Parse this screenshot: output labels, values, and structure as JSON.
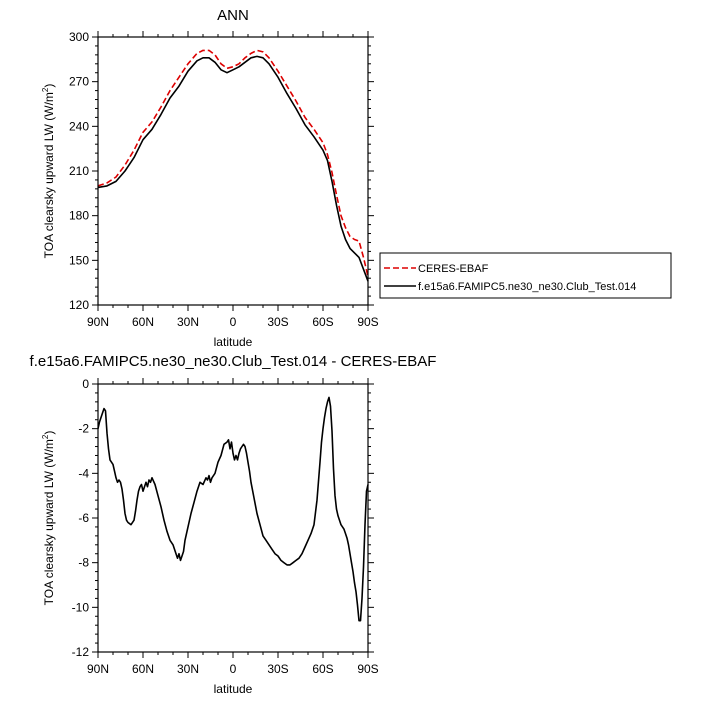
{
  "chart_data": [
    {
      "type": "line",
      "title": "ANN",
      "xlabel": "latitude",
      "ylabel": "TOA clearsky upward LW (W/m",
      "ylabel_sup": "2",
      "ylabel_end": ")",
      "xlim": [
        90,
        -90
      ],
      "ylim": [
        120,
        300
      ],
      "x_tick_values": [
        90,
        60,
        30,
        0,
        -30,
        -60,
        -90
      ],
      "x_tick_labels": [
        "90N",
        "60N",
        "30N",
        "0",
        "30S",
        "60S",
        "90S"
      ],
      "y_tick_values": [
        120,
        150,
        180,
        210,
        240,
        270,
        300
      ],
      "y_tick_labels": [
        "120",
        "150",
        "180",
        "210",
        "240",
        "270",
        "300"
      ],
      "legend_position": "right",
      "series": [
        {
          "name": "CERES-EBAF",
          "color": "#dd0000",
          "dash": "dashed",
          "x": [
            90,
            84,
            78,
            72,
            66,
            60,
            54,
            48,
            42,
            36,
            30,
            24,
            20,
            16,
            12,
            8,
            4,
            0,
            -4,
            -8,
            -12,
            -16,
            -20,
            -24,
            -30,
            -36,
            -42,
            -48,
            -54,
            -60,
            -63,
            -66,
            -69,
            -72,
            -75,
            -78,
            -81,
            -84,
            -87,
            -90
          ],
          "y": [
            200,
            202,
            206,
            214,
            224,
            236,
            243,
            253,
            264,
            273,
            282,
            289,
            291,
            291,
            288,
            282,
            279,
            280,
            282,
            286,
            289,
            291,
            290,
            286,
            277,
            267,
            257,
            246,
            238,
            229,
            221,
            209,
            194,
            180,
            172,
            166,
            164,
            163,
            152,
            139
          ]
        },
        {
          "name": "f.e15a6.FAMIPC5.ne30_ne30.Club_Test.014",
          "color": "#000000",
          "dash": "solid",
          "x": [
            90,
            84,
            78,
            72,
            66,
            60,
            54,
            48,
            42,
            36,
            30,
            24,
            20,
            16,
            12,
            8,
            4,
            0,
            -4,
            -8,
            -12,
            -16,
            -20,
            -24,
            -30,
            -36,
            -42,
            -48,
            -54,
            -60,
            -63,
            -66,
            -69,
            -72,
            -75,
            -78,
            -81,
            -84,
            -87,
            -90
          ],
          "y": [
            199,
            200,
            203,
            210,
            219,
            231,
            238,
            248,
            259,
            267,
            277,
            284,
            286,
            286,
            283,
            278,
            276,
            278,
            280,
            283,
            286,
            287,
            286,
            282,
            273,
            262,
            252,
            241,
            233,
            224,
            217,
            203,
            187,
            173,
            164,
            158,
            155,
            152,
            144,
            136
          ]
        }
      ]
    },
    {
      "type": "line",
      "title": "f.e15a6.FAMIPC5.ne30_ne30.Club_Test.014 - CERES-EBAF",
      "xlabel": "latitude",
      "ylabel": "TOA clearsky upward LW (W/m",
      "ylabel_sup": "2",
      "ylabel_end": ")",
      "xlim": [
        90,
        -90
      ],
      "ylim": [
        -12,
        0
      ],
      "x_tick_values": [
        90,
        60,
        30,
        0,
        -30,
        -60,
        -90
      ],
      "x_tick_labels": [
        "90N",
        "60N",
        "30N",
        "0",
        "30S",
        "60S",
        "90S"
      ],
      "y_tick_values": [
        -12,
        -10,
        -8,
        -6,
        -4,
        -2,
        0
      ],
      "y_tick_labels": [
        "-12",
        "-10",
        "-8",
        "-6",
        "-4",
        "-2",
        "0"
      ],
      "series": [
        {
          "color": "#000000",
          "dash": "solid",
          "x": [
            90,
            89,
            87,
            86,
            85,
            84,
            83,
            82,
            81,
            80,
            79,
            78,
            77,
            76,
            75,
            74,
            73,
            72,
            71,
            70,
            68,
            66,
            65,
            64,
            63,
            62,
            61,
            60,
            58,
            57,
            56,
            55,
            54,
            52,
            50,
            48,
            46,
            44,
            42,
            40,
            38,
            37,
            36,
            35,
            34,
            33,
            32,
            30,
            28,
            26,
            24,
            22,
            20,
            18,
            17,
            16,
            15,
            14,
            12,
            10,
            8,
            6,
            4,
            3,
            2,
            1,
            0,
            -1,
            -2,
            -3,
            -4,
            -5,
            -6,
            -7,
            -8,
            -9,
            -10,
            -11,
            -12,
            -14,
            -16,
            -18,
            -20,
            -22,
            -24,
            -26,
            -28,
            -30,
            -32,
            -34,
            -36,
            -38,
            -40,
            -42,
            -44,
            -46,
            -48,
            -50,
            -52,
            -54,
            -56,
            -58,
            -59,
            -60,
            -61,
            -62,
            -63,
            -64,
            -65,
            -66,
            -67,
            -68,
            -69,
            -70,
            -71,
            -72,
            -73,
            -74,
            -75,
            -76,
            -77,
            -78,
            -79,
            -80,
            -81,
            -82,
            -83,
            -84,
            -85,
            -86,
            -87,
            -88,
            -89,
            -90
          ],
          "y": [
            -2.0,
            -1.7,
            -1.3,
            -1.1,
            -1.2,
            -2.2,
            -2.9,
            -3.4,
            -3.5,
            -3.6,
            -3.9,
            -4.2,
            -4.4,
            -4.3,
            -4.4,
            -4.7,
            -5.2,
            -5.8,
            -6.1,
            -6.2,
            -6.3,
            -6.1,
            -5.7,
            -5.2,
            -4.8,
            -4.6,
            -4.5,
            -4.8,
            -4.4,
            -4.6,
            -4.3,
            -4.4,
            -4.2,
            -4.5,
            -5.0,
            -5.5,
            -6.1,
            -6.6,
            -7.0,
            -7.2,
            -7.6,
            -7.8,
            -7.6,
            -7.9,
            -7.7,
            -7.5,
            -7.0,
            -6.4,
            -5.8,
            -5.3,
            -4.8,
            -4.4,
            -4.5,
            -4.2,
            -4.3,
            -4.1,
            -4.4,
            -4.2,
            -4.0,
            -3.5,
            -3.2,
            -2.7,
            -2.6,
            -2.5,
            -2.9,
            -2.6,
            -3.1,
            -3.4,
            -3.2,
            -3.4,
            -3.1,
            -2.9,
            -2.8,
            -2.7,
            -2.8,
            -3.1,
            -3.5,
            -3.9,
            -4.4,
            -5.1,
            -5.8,
            -6.3,
            -6.8,
            -7.0,
            -7.2,
            -7.4,
            -7.6,
            -7.7,
            -7.9,
            -8.0,
            -8.1,
            -8.1,
            -8.0,
            -7.9,
            -7.8,
            -7.6,
            -7.3,
            -7.0,
            -6.7,
            -6.3,
            -5.2,
            -3.5,
            -2.6,
            -2.0,
            -1.5,
            -1.1,
            -0.8,
            -0.6,
            -1.0,
            -2.1,
            -3.8,
            -5.0,
            -5.6,
            -5.9,
            -6.1,
            -6.3,
            -6.4,
            -6.5,
            -6.7,
            -6.9,
            -7.2,
            -7.6,
            -8.0,
            -8.4,
            -8.9,
            -9.3,
            -9.9,
            -10.6,
            -10.6,
            -9.6,
            -8.2,
            -6.3,
            -4.8,
            -4.5
          ]
        }
      ]
    }
  ]
}
